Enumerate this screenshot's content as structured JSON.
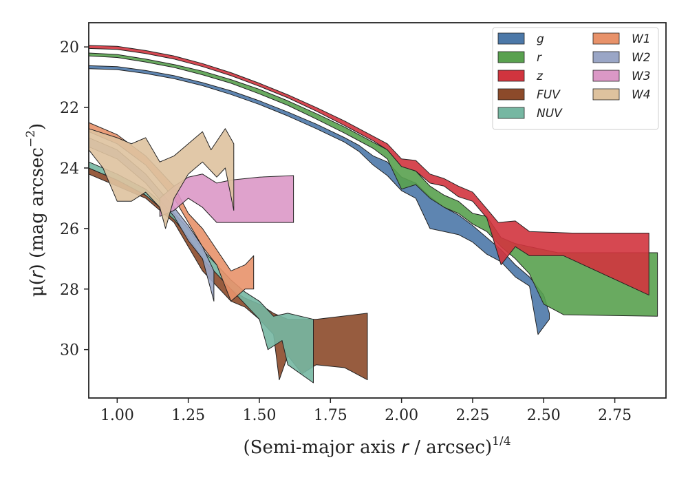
{
  "chart_data": {
    "type": "area",
    "xlabel_parts": {
      "pre": "(Semi-major axis ",
      "var": "r",
      "post": " / arcsec)",
      "sup": "1/4"
    },
    "ylabel_parts": {
      "pre": "μ(",
      "var": "r",
      "post": ") (mag arcsec",
      "sup": "−2",
      "end": ")"
    },
    "xlim": [
      0.9,
      2.93
    ],
    "ylim": [
      31.6,
      19.2
    ],
    "xticks": [
      1.0,
      1.25,
      1.5,
      1.75,
      2.0,
      2.25,
      2.5,
      2.75
    ],
    "xtick_labels": [
      "1.00",
      "1.25",
      "1.50",
      "1.75",
      "2.00",
      "2.25",
      "2.50",
      "2.75"
    ],
    "yticks": [
      20,
      22,
      24,
      26,
      28,
      30
    ],
    "ytick_labels": [
      "20",
      "22",
      "24",
      "26",
      "28",
      "30"
    ],
    "legend_position": "top-right",
    "legend_columns": 2,
    "series": [
      {
        "name": "g",
        "color": "#4C78A8",
        "upper": [
          [
            0.9,
            20.62
          ],
          [
            1.0,
            20.65
          ],
          [
            1.1,
            20.78
          ],
          [
            1.2,
            20.95
          ],
          [
            1.3,
            21.18
          ],
          [
            1.4,
            21.45
          ],
          [
            1.5,
            21.78
          ],
          [
            1.6,
            22.15
          ],
          [
            1.7,
            22.55
          ],
          [
            1.8,
            23.0
          ],
          [
            1.85,
            23.25
          ],
          [
            1.9,
            23.6
          ],
          [
            1.95,
            23.8
          ],
          [
            2.0,
            24.3
          ],
          [
            2.05,
            24.5
          ],
          [
            2.1,
            24.95
          ],
          [
            2.15,
            25.3
          ],
          [
            2.2,
            25.55
          ],
          [
            2.25,
            25.9
          ],
          [
            2.3,
            26.3
          ],
          [
            2.35,
            26.7
          ],
          [
            2.4,
            27.2
          ],
          [
            2.45,
            27.6
          ],
          [
            2.5,
            28.2
          ],
          [
            2.52,
            28.8
          ]
        ],
        "lower": [
          [
            0.9,
            20.72
          ],
          [
            1.0,
            20.75
          ],
          [
            1.1,
            20.88
          ],
          [
            1.2,
            21.05
          ],
          [
            1.3,
            21.28
          ],
          [
            1.4,
            21.57
          ],
          [
            1.5,
            21.9
          ],
          [
            1.6,
            22.28
          ],
          [
            1.7,
            22.7
          ],
          [
            1.8,
            23.15
          ],
          [
            1.85,
            23.45
          ],
          [
            1.9,
            23.9
          ],
          [
            1.95,
            24.25
          ],
          [
            2.0,
            24.75
          ],
          [
            2.05,
            25.0
          ],
          [
            2.1,
            26.0
          ],
          [
            2.15,
            26.1
          ],
          [
            2.2,
            26.2
          ],
          [
            2.25,
            26.45
          ],
          [
            2.3,
            26.85
          ],
          [
            2.35,
            27.1
          ],
          [
            2.4,
            27.6
          ],
          [
            2.45,
            27.9
          ],
          [
            2.48,
            29.5
          ],
          [
            2.52,
            29.0
          ]
        ]
      },
      {
        "name": "r",
        "color": "#59A14F",
        "upper": [
          [
            0.9,
            20.2
          ],
          [
            1.0,
            20.25
          ],
          [
            1.1,
            20.4
          ],
          [
            1.2,
            20.58
          ],
          [
            1.3,
            20.8
          ],
          [
            1.4,
            21.08
          ],
          [
            1.5,
            21.4
          ],
          [
            1.6,
            21.78
          ],
          [
            1.7,
            22.2
          ],
          [
            1.8,
            22.65
          ],
          [
            1.9,
            23.15
          ],
          [
            1.95,
            23.4
          ],
          [
            2.0,
            23.95
          ],
          [
            2.05,
            24.1
          ],
          [
            2.1,
            24.6
          ],
          [
            2.15,
            24.9
          ],
          [
            2.2,
            25.1
          ],
          [
            2.25,
            25.5
          ],
          [
            2.3,
            25.6
          ],
          [
            2.35,
            26.3
          ],
          [
            2.4,
            26.5
          ],
          [
            2.45,
            26.6
          ],
          [
            2.55,
            26.8
          ],
          [
            2.9,
            26.8
          ]
        ],
        "lower": [
          [
            0.9,
            20.3
          ],
          [
            1.0,
            20.35
          ],
          [
            1.1,
            20.5
          ],
          [
            1.2,
            20.68
          ],
          [
            1.3,
            20.92
          ],
          [
            1.4,
            21.2
          ],
          [
            1.5,
            21.55
          ],
          [
            1.6,
            21.93
          ],
          [
            1.7,
            22.38
          ],
          [
            1.8,
            22.85
          ],
          [
            1.9,
            23.35
          ],
          [
            1.95,
            23.7
          ],
          [
            2.0,
            24.7
          ],
          [
            2.05,
            24.55
          ],
          [
            2.1,
            25.0
          ],
          [
            2.15,
            25.3
          ],
          [
            2.2,
            25.5
          ],
          [
            2.25,
            25.85
          ],
          [
            2.3,
            26.1
          ],
          [
            2.35,
            26.6
          ],
          [
            2.4,
            27.0
          ],
          [
            2.45,
            27.5
          ],
          [
            2.5,
            28.5
          ],
          [
            2.57,
            28.85
          ],
          [
            2.9,
            28.9
          ]
        ]
      },
      {
        "name": "z",
        "color": "#D1343E",
        "upper": [
          [
            0.9,
            19.95
          ],
          [
            1.0,
            19.98
          ],
          [
            1.1,
            20.12
          ],
          [
            1.2,
            20.3
          ],
          [
            1.3,
            20.55
          ],
          [
            1.4,
            20.85
          ],
          [
            1.5,
            21.2
          ],
          [
            1.6,
            21.58
          ],
          [
            1.7,
            22.0
          ],
          [
            1.8,
            22.45
          ],
          [
            1.9,
            22.95
          ],
          [
            1.95,
            23.2
          ],
          [
            2.0,
            23.7
          ],
          [
            2.05,
            23.75
          ],
          [
            2.1,
            24.2
          ],
          [
            2.15,
            24.35
          ],
          [
            2.2,
            24.6
          ],
          [
            2.25,
            24.8
          ],
          [
            2.3,
            25.35
          ],
          [
            2.34,
            25.8
          ],
          [
            2.4,
            25.75
          ],
          [
            2.45,
            26.1
          ],
          [
            2.6,
            26.15
          ],
          [
            2.87,
            26.15
          ]
        ],
        "lower": [
          [
            0.9,
            20.05
          ],
          [
            1.0,
            20.08
          ],
          [
            1.1,
            20.22
          ],
          [
            1.2,
            20.4
          ],
          [
            1.3,
            20.65
          ],
          [
            1.4,
            20.95
          ],
          [
            1.5,
            21.3
          ],
          [
            1.6,
            21.68
          ],
          [
            1.7,
            22.12
          ],
          [
            1.8,
            22.6
          ],
          [
            1.9,
            23.1
          ],
          [
            1.95,
            23.4
          ],
          [
            2.0,
            23.95
          ],
          [
            2.05,
            24.1
          ],
          [
            2.1,
            24.5
          ],
          [
            2.15,
            24.6
          ],
          [
            2.2,
            24.95
          ],
          [
            2.25,
            25.1
          ],
          [
            2.3,
            25.65
          ],
          [
            2.35,
            27.2
          ],
          [
            2.4,
            26.6
          ],
          [
            2.45,
            26.9
          ],
          [
            2.57,
            26.9
          ],
          [
            2.87,
            28.2
          ]
        ]
      },
      {
        "name": "FUV",
        "color": "#8C4A2A",
        "upper": [
          [
            0.9,
            24.0
          ],
          [
            1.0,
            24.4
          ],
          [
            1.1,
            24.9
          ],
          [
            1.2,
            25.6
          ],
          [
            1.25,
            26.2
          ],
          [
            1.3,
            27.0
          ],
          [
            1.35,
            27.5
          ],
          [
            1.4,
            28.0
          ],
          [
            1.45,
            28.3
          ],
          [
            1.5,
            28.5
          ],
          [
            1.55,
            28.8
          ],
          [
            1.6,
            29.0
          ],
          [
            1.7,
            29.0
          ],
          [
            1.88,
            28.8
          ]
        ],
        "lower": [
          [
            0.9,
            24.2
          ],
          [
            1.0,
            24.6
          ],
          [
            1.1,
            25.0
          ],
          [
            1.2,
            25.8
          ],
          [
            1.25,
            26.6
          ],
          [
            1.3,
            27.4
          ],
          [
            1.35,
            27.9
          ],
          [
            1.4,
            28.4
          ],
          [
            1.45,
            28.6
          ],
          [
            1.5,
            29.0
          ],
          [
            1.55,
            29.5
          ],
          [
            1.57,
            31.0
          ],
          [
            1.6,
            30.2
          ],
          [
            1.65,
            30.8
          ],
          [
            1.7,
            30.5
          ],
          [
            1.8,
            30.6
          ],
          [
            1.88,
            31.0
          ]
        ]
      },
      {
        "name": "NUV",
        "color": "#76B7A2",
        "upper": [
          [
            0.9,
            23.8
          ],
          [
            1.0,
            24.2
          ],
          [
            1.1,
            24.7
          ],
          [
            1.2,
            25.5
          ],
          [
            1.25,
            26.0
          ],
          [
            1.3,
            26.7
          ],
          [
            1.35,
            27.2
          ],
          [
            1.4,
            27.7
          ],
          [
            1.45,
            28.1
          ],
          [
            1.5,
            28.4
          ],
          [
            1.55,
            28.9
          ],
          [
            1.6,
            28.8
          ],
          [
            1.69,
            29.0
          ]
        ],
        "lower": [
          [
            0.9,
            24.0
          ],
          [
            1.0,
            24.4
          ],
          [
            1.1,
            24.9
          ],
          [
            1.2,
            25.7
          ],
          [
            1.25,
            26.3
          ],
          [
            1.3,
            27.0
          ],
          [
            1.35,
            27.5
          ],
          [
            1.4,
            28.0
          ],
          [
            1.45,
            28.5
          ],
          [
            1.5,
            29.0
          ],
          [
            1.53,
            30.0
          ],
          [
            1.58,
            29.7
          ],
          [
            1.6,
            30.5
          ],
          [
            1.69,
            31.1
          ]
        ]
      },
      {
        "name": "W1",
        "color": "#E8926A",
        "upper": [
          [
            0.9,
            22.5
          ],
          [
            1.0,
            22.9
          ],
          [
            1.1,
            23.6
          ],
          [
            1.2,
            24.6
          ],
          [
            1.25,
            25.5
          ],
          [
            1.3,
            26.0
          ],
          [
            1.35,
            26.7
          ],
          [
            1.4,
            27.4
          ],
          [
            1.45,
            27.2
          ],
          [
            1.48,
            26.9
          ]
        ],
        "lower": [
          [
            0.9,
            22.8
          ],
          [
            1.0,
            23.2
          ],
          [
            1.1,
            23.9
          ],
          [
            1.2,
            25.0
          ],
          [
            1.25,
            25.8
          ],
          [
            1.3,
            26.6
          ],
          [
            1.35,
            27.2
          ],
          [
            1.4,
            28.4
          ],
          [
            1.45,
            28.0
          ],
          [
            1.48,
            28.0
          ]
        ]
      },
      {
        "name": "W2",
        "color": "#9AA6C6",
        "upper": [
          [
            0.9,
            23.0
          ],
          [
            1.0,
            23.4
          ],
          [
            1.1,
            24.2
          ],
          [
            1.2,
            25.3
          ],
          [
            1.25,
            25.9
          ],
          [
            1.3,
            26.6
          ],
          [
            1.34,
            27.4
          ]
        ],
        "lower": [
          [
            0.9,
            23.3
          ],
          [
            1.0,
            23.7
          ],
          [
            1.1,
            24.5
          ],
          [
            1.2,
            25.6
          ],
          [
            1.25,
            26.4
          ],
          [
            1.3,
            27.0
          ],
          [
            1.34,
            28.4
          ]
        ]
      },
      {
        "name": "W3",
        "color": "#DB98C6",
        "upper": [
          [
            1.15,
            25.0
          ],
          [
            1.2,
            24.6
          ],
          [
            1.25,
            24.3
          ],
          [
            1.3,
            24.2
          ],
          [
            1.35,
            24.5
          ],
          [
            1.4,
            24.4
          ],
          [
            1.5,
            24.3
          ],
          [
            1.62,
            24.25
          ]
        ],
        "lower": [
          [
            1.15,
            25.6
          ],
          [
            1.2,
            25.4
          ],
          [
            1.25,
            25.0
          ],
          [
            1.3,
            25.3
          ],
          [
            1.35,
            25.8
          ],
          [
            1.45,
            25.8
          ],
          [
            1.62,
            25.8
          ]
        ]
      },
      {
        "name": "W4",
        "color": "#DEC29E",
        "upper": [
          [
            0.9,
            22.7
          ],
          [
            1.0,
            23.0
          ],
          [
            1.05,
            23.2
          ],
          [
            1.1,
            23.0
          ],
          [
            1.15,
            23.8
          ],
          [
            1.2,
            23.6
          ],
          [
            1.25,
            23.2
          ],
          [
            1.3,
            22.8
          ],
          [
            1.33,
            23.4
          ],
          [
            1.38,
            22.7
          ],
          [
            1.41,
            23.2
          ]
        ],
        "lower": [
          [
            0.9,
            23.4
          ],
          [
            0.95,
            24.0
          ],
          [
            1.0,
            25.1
          ],
          [
            1.05,
            25.1
          ],
          [
            1.1,
            24.8
          ],
          [
            1.15,
            25.3
          ],
          [
            1.17,
            26.0
          ],
          [
            1.2,
            25.0
          ],
          [
            1.25,
            24.2
          ],
          [
            1.3,
            23.8
          ],
          [
            1.35,
            24.3
          ],
          [
            1.38,
            24.0
          ],
          [
            1.41,
            25.4
          ]
        ]
      }
    ]
  }
}
